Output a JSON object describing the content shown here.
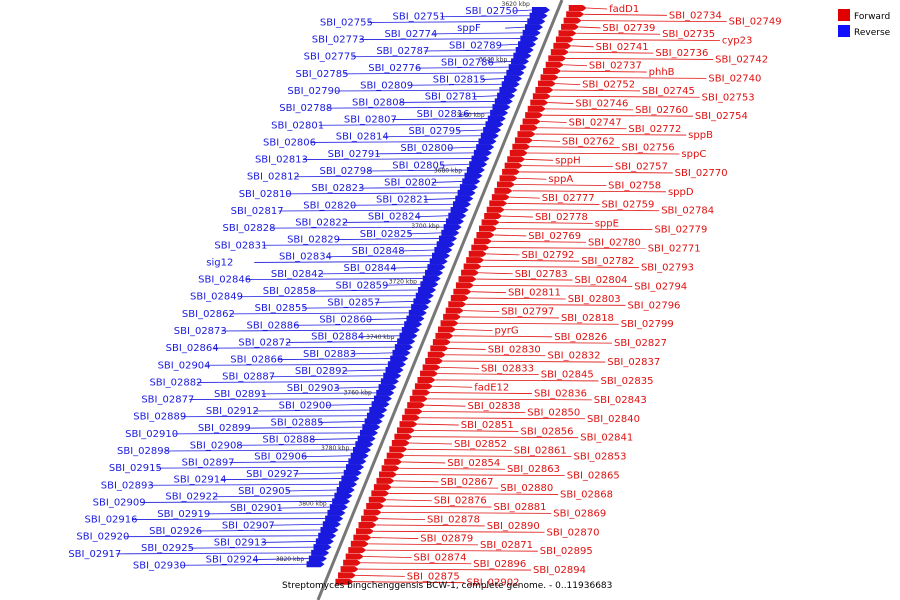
{
  "caption": "Streptomyces bingchenggensis BCW-1, complete genome. - 0..11936683",
  "legend": [
    {
      "label": "Forward",
      "color": "#e00000"
    },
    {
      "label": "Reverse",
      "color": "#1010ff"
    }
  ],
  "colors": {
    "forward": "#e01010",
    "reverse": "#1a1adf",
    "axis": "#777777"
  },
  "ticks": [
    "3620 kbp",
    "3640 kbp",
    "3660 kbp",
    "3680 kbp",
    "3700 kbp",
    "3720 kbp",
    "3740 kbp",
    "3760 kbp",
    "3780 kbp",
    "3800 kbp",
    "3820 kbp"
  ],
  "reverse_labels": [
    "SBI_02750",
    "SBI_02751",
    "SBI_02755",
    "sppF",
    "SBI_02774",
    "SBI_02773",
    "SBI_02789",
    "SBI_02787",
    "SBI_02775",
    "SBI_02786",
    "SBI_02776",
    "SBI_02785",
    "SBI_02815",
    "SBI_02809",
    "SBI_02790",
    "SBI_02781",
    "SBI_02808",
    "SBI_02788",
    "SBI_02816",
    "SBI_02807",
    "SBI_02801",
    "SBI_02795",
    "SBI_02814",
    "SBI_02806",
    "SBI_02800",
    "SBI_02791",
    "SBI_02813",
    "SBI_02805",
    "SBI_02798",
    "SBI_02812",
    "SBI_02802",
    "SBI_02823",
    "SBI_02810",
    "SBI_02821",
    "SBI_02820",
    "SBI_02817",
    "SBI_02824",
    "SBI_02822",
    "SBI_02828",
    "SBI_02825",
    "SBI_02829",
    "SBI_02831",
    "SBI_02848",
    "SBI_02834",
    "sig12",
    "SBI_02844",
    "SBI_02842",
    "SBI_02846",
    "SBI_02859",
    "SBI_02858",
    "SBI_02849",
    "SBI_02857",
    "SBI_02855",
    "SBI_02862",
    "SBI_02860",
    "SBI_02886",
    "SBI_02873",
    "SBI_02884",
    "SBI_02872",
    "SBI_02864",
    "SBI_02883",
    "SBI_02866",
    "SBI_02904",
    "SBI_02892",
    "SBI_02887",
    "SBI_02882",
    "SBI_02903",
    "SBI_02891",
    "SBI_02877",
    "SBI_02900",
    "SBI_02912",
    "SBI_02889",
    "SBI_02885",
    "SBI_02899",
    "SBI_02910",
    "SBI_02888",
    "SBI_02908",
    "SBI_02898",
    "SBI_02906",
    "SBI_02897",
    "SBI_02915",
    "SBI_02927",
    "SBI_02914",
    "SBI_02893",
    "SBI_02905",
    "SBI_02922",
    "SBI_02909",
    "SBI_02901",
    "SBI_02919",
    "SBI_02916",
    "SBI_02907",
    "SBI_02926",
    "SBI_02920",
    "SBI_02913",
    "SBI_02925",
    "SBI_02917",
    "SBI_02924",
    "SBI_02930"
  ],
  "forward_labels": [
    "fadD1",
    "SBI_02734",
    "SBI_02749",
    "SBI_02739",
    "SBI_02735",
    "cyp23",
    "SBI_02741",
    "SBI_02736",
    "SBI_02742",
    "SBI_02737",
    "phhB",
    "SBI_02740",
    "SBI_02752",
    "SBI_02745",
    "SBI_02753",
    "SBI_02746",
    "SBI_02760",
    "SBI_02754",
    "SBI_02747",
    "SBI_02772",
    "sppB",
    "SBI_02762",
    "SBI_02756",
    "sppC",
    "sppH",
    "SBI_02757",
    "SBI_02770",
    "sppA",
    "SBI_02758",
    "sppD",
    "SBI_02777",
    "SBI_02759",
    "SBI_02784",
    "SBI_02778",
    "sppE",
    "SBI_02779",
    "SBI_02769",
    "SBI_02780",
    "SBI_02771",
    "SBI_02792",
    "SBI_02782",
    "SBI_02793",
    "SBI_02783",
    "SBI_02804",
    "SBI_02794",
    "SBI_02811",
    "SBI_02803",
    "SBI_02796",
    "SBI_02797",
    "SBI_02818",
    "SBI_02799",
    "pyrG",
    "SBI_02826",
    "SBI_02827",
    "SBI_02830",
    "SBI_02832",
    "SBI_02837",
    "SBI_02833",
    "SBI_02845",
    "SBI_02835",
    "fadE12",
    "SBI_02836",
    "SBI_02843",
    "SBI_02838",
    "SBI_02850",
    "SBI_02840",
    "SBI_02851",
    "SBI_02856",
    "SBI_02841",
    "SBI_02852",
    "SBI_02861",
    "SBI_02853",
    "SBI_02854",
    "SBI_02863",
    "SBI_02865",
    "SBI_02867",
    "SBI_02880",
    "SBI_02868",
    "SBI_02876",
    "SBI_02881",
    "SBI_02869",
    "SBI_02878",
    "SBI_02890",
    "SBI_02870",
    "SBI_02879",
    "SBI_02871",
    "SBI_02895",
    "SBI_02874",
    "SBI_02896",
    "SBI_02894",
    "SBI_02875",
    "SBI_02902"
  ]
}
